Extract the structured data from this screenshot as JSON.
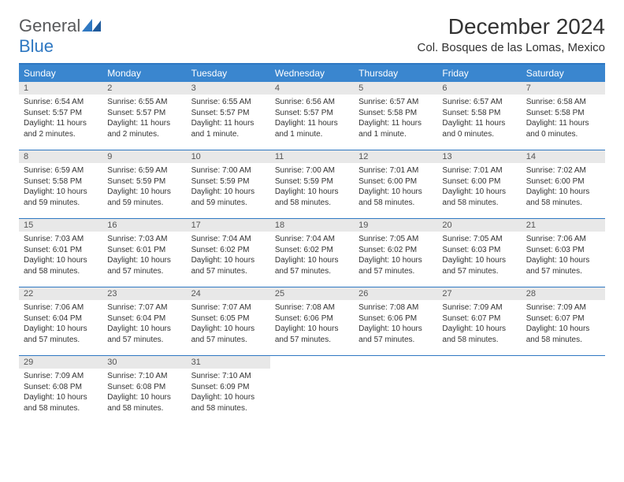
{
  "logo": {
    "text1": "General",
    "text2": "Blue"
  },
  "title": "December 2024",
  "location": "Col. Bosques de las Lomas, Mexico",
  "colors": {
    "header_bg": "#3a86cf",
    "border": "#2f78c2",
    "daynum_bg": "#e8e8e8",
    "logo_gray": "#58595b",
    "logo_blue": "#2f78c2"
  },
  "day_headers": [
    "Sunday",
    "Monday",
    "Tuesday",
    "Wednesday",
    "Thursday",
    "Friday",
    "Saturday"
  ],
  "weeks": [
    [
      {
        "num": "1",
        "sunrise": "Sunrise: 6:54 AM",
        "sunset": "Sunset: 5:57 PM",
        "daylight": "Daylight: 11 hours and 2 minutes."
      },
      {
        "num": "2",
        "sunrise": "Sunrise: 6:55 AM",
        "sunset": "Sunset: 5:57 PM",
        "daylight": "Daylight: 11 hours and 2 minutes."
      },
      {
        "num": "3",
        "sunrise": "Sunrise: 6:55 AM",
        "sunset": "Sunset: 5:57 PM",
        "daylight": "Daylight: 11 hours and 1 minute."
      },
      {
        "num": "4",
        "sunrise": "Sunrise: 6:56 AM",
        "sunset": "Sunset: 5:57 PM",
        "daylight": "Daylight: 11 hours and 1 minute."
      },
      {
        "num": "5",
        "sunrise": "Sunrise: 6:57 AM",
        "sunset": "Sunset: 5:58 PM",
        "daylight": "Daylight: 11 hours and 1 minute."
      },
      {
        "num": "6",
        "sunrise": "Sunrise: 6:57 AM",
        "sunset": "Sunset: 5:58 PM",
        "daylight": "Daylight: 11 hours and 0 minutes."
      },
      {
        "num": "7",
        "sunrise": "Sunrise: 6:58 AM",
        "sunset": "Sunset: 5:58 PM",
        "daylight": "Daylight: 11 hours and 0 minutes."
      }
    ],
    [
      {
        "num": "8",
        "sunrise": "Sunrise: 6:59 AM",
        "sunset": "Sunset: 5:58 PM",
        "daylight": "Daylight: 10 hours and 59 minutes."
      },
      {
        "num": "9",
        "sunrise": "Sunrise: 6:59 AM",
        "sunset": "Sunset: 5:59 PM",
        "daylight": "Daylight: 10 hours and 59 minutes."
      },
      {
        "num": "10",
        "sunrise": "Sunrise: 7:00 AM",
        "sunset": "Sunset: 5:59 PM",
        "daylight": "Daylight: 10 hours and 59 minutes."
      },
      {
        "num": "11",
        "sunrise": "Sunrise: 7:00 AM",
        "sunset": "Sunset: 5:59 PM",
        "daylight": "Daylight: 10 hours and 58 minutes."
      },
      {
        "num": "12",
        "sunrise": "Sunrise: 7:01 AM",
        "sunset": "Sunset: 6:00 PM",
        "daylight": "Daylight: 10 hours and 58 minutes."
      },
      {
        "num": "13",
        "sunrise": "Sunrise: 7:01 AM",
        "sunset": "Sunset: 6:00 PM",
        "daylight": "Daylight: 10 hours and 58 minutes."
      },
      {
        "num": "14",
        "sunrise": "Sunrise: 7:02 AM",
        "sunset": "Sunset: 6:00 PM",
        "daylight": "Daylight: 10 hours and 58 minutes."
      }
    ],
    [
      {
        "num": "15",
        "sunrise": "Sunrise: 7:03 AM",
        "sunset": "Sunset: 6:01 PM",
        "daylight": "Daylight: 10 hours and 58 minutes."
      },
      {
        "num": "16",
        "sunrise": "Sunrise: 7:03 AM",
        "sunset": "Sunset: 6:01 PM",
        "daylight": "Daylight: 10 hours and 57 minutes."
      },
      {
        "num": "17",
        "sunrise": "Sunrise: 7:04 AM",
        "sunset": "Sunset: 6:02 PM",
        "daylight": "Daylight: 10 hours and 57 minutes."
      },
      {
        "num": "18",
        "sunrise": "Sunrise: 7:04 AM",
        "sunset": "Sunset: 6:02 PM",
        "daylight": "Daylight: 10 hours and 57 minutes."
      },
      {
        "num": "19",
        "sunrise": "Sunrise: 7:05 AM",
        "sunset": "Sunset: 6:02 PM",
        "daylight": "Daylight: 10 hours and 57 minutes."
      },
      {
        "num": "20",
        "sunrise": "Sunrise: 7:05 AM",
        "sunset": "Sunset: 6:03 PM",
        "daylight": "Daylight: 10 hours and 57 minutes."
      },
      {
        "num": "21",
        "sunrise": "Sunrise: 7:06 AM",
        "sunset": "Sunset: 6:03 PM",
        "daylight": "Daylight: 10 hours and 57 minutes."
      }
    ],
    [
      {
        "num": "22",
        "sunrise": "Sunrise: 7:06 AM",
        "sunset": "Sunset: 6:04 PM",
        "daylight": "Daylight: 10 hours and 57 minutes."
      },
      {
        "num": "23",
        "sunrise": "Sunrise: 7:07 AM",
        "sunset": "Sunset: 6:04 PM",
        "daylight": "Daylight: 10 hours and 57 minutes."
      },
      {
        "num": "24",
        "sunrise": "Sunrise: 7:07 AM",
        "sunset": "Sunset: 6:05 PM",
        "daylight": "Daylight: 10 hours and 57 minutes."
      },
      {
        "num": "25",
        "sunrise": "Sunrise: 7:08 AM",
        "sunset": "Sunset: 6:06 PM",
        "daylight": "Daylight: 10 hours and 57 minutes."
      },
      {
        "num": "26",
        "sunrise": "Sunrise: 7:08 AM",
        "sunset": "Sunset: 6:06 PM",
        "daylight": "Daylight: 10 hours and 57 minutes."
      },
      {
        "num": "27",
        "sunrise": "Sunrise: 7:09 AM",
        "sunset": "Sunset: 6:07 PM",
        "daylight": "Daylight: 10 hours and 58 minutes."
      },
      {
        "num": "28",
        "sunrise": "Sunrise: 7:09 AM",
        "sunset": "Sunset: 6:07 PM",
        "daylight": "Daylight: 10 hours and 58 minutes."
      }
    ],
    [
      {
        "num": "29",
        "sunrise": "Sunrise: 7:09 AM",
        "sunset": "Sunset: 6:08 PM",
        "daylight": "Daylight: 10 hours and 58 minutes."
      },
      {
        "num": "30",
        "sunrise": "Sunrise: 7:10 AM",
        "sunset": "Sunset: 6:08 PM",
        "daylight": "Daylight: 10 hours and 58 minutes."
      },
      {
        "num": "31",
        "sunrise": "Sunrise: 7:10 AM",
        "sunset": "Sunset: 6:09 PM",
        "daylight": "Daylight: 10 hours and 58 minutes."
      },
      null,
      null,
      null,
      null
    ]
  ]
}
